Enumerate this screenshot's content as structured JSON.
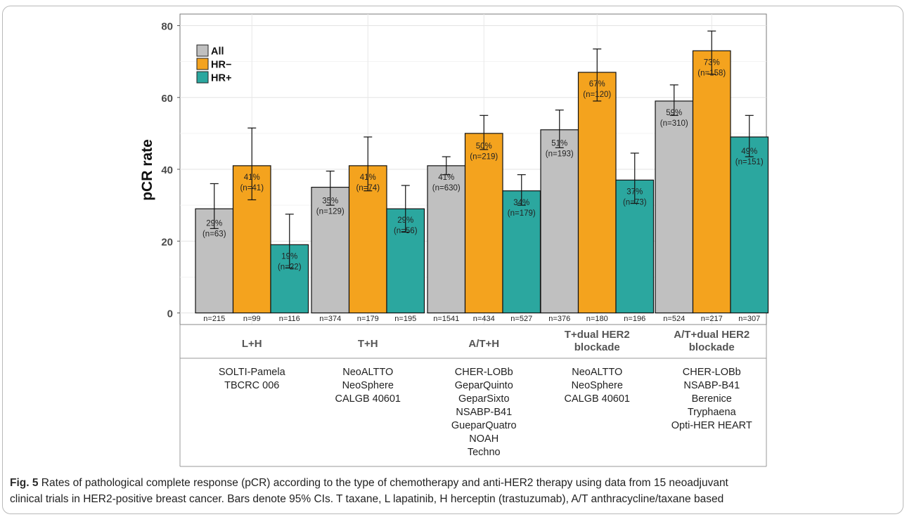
{
  "chart_data": {
    "type": "bar",
    "ylabel": "pCR rate",
    "ylim": [
      0,
      80
    ],
    "yticks": [
      0,
      20,
      40,
      60,
      80
    ],
    "grid": true,
    "legend_position": "top-left",
    "series": [
      {
        "name": "All",
        "color": "#c0c0c0",
        "values": [
          29,
          35,
          41,
          51,
          59
        ],
        "ci_low": [
          23.5,
          30,
          38.5,
          46,
          55
        ],
        "ci_high": [
          36,
          39.5,
          43.5,
          56.5,
          63.5
        ],
        "labels": [
          "29%",
          "35%",
          "41%",
          "51%",
          "59%"
        ],
        "n_pcr": [
          "(n=63)",
          "(n=129)",
          "(n=630)",
          "(n=193)",
          "(n=310)"
        ],
        "n_total": [
          "n=215",
          "n=374",
          "n=1541",
          "n=376",
          "n=524"
        ]
      },
      {
        "name": "HR−",
        "color": "#f4a31e",
        "values": [
          41,
          41,
          50,
          67,
          73
        ],
        "ci_low": [
          31.5,
          34,
          45.5,
          59,
          66.5
        ],
        "ci_high": [
          51.5,
          49,
          55,
          73.5,
          78.5
        ],
        "labels": [
          "41%",
          "41%",
          "50%",
          "67%",
          "73%"
        ],
        "n_pcr": [
          "(n=41)",
          "(n=74)",
          "(n=219)",
          "(n=120)",
          "(n=158)"
        ],
        "n_total": [
          "n=99",
          "n=179",
          "n=434",
          "n=180",
          "n=217"
        ]
      },
      {
        "name": "HR+",
        "color": "#2ba79f",
        "values": [
          19,
          29,
          34,
          37,
          49
        ],
        "ci_low": [
          12.5,
          22.5,
          30,
          30.5,
          43.5
        ],
        "ci_high": [
          27.5,
          35.5,
          38.5,
          44.5,
          55
        ],
        "labels": [
          "19%",
          "29%",
          "34%",
          "37%",
          "49%"
        ],
        "n_pcr": [
          "(n=22)",
          "(n=56)",
          "(n=179)",
          "(n=73)",
          "(n=151)"
        ],
        "n_total": [
          "n=116",
          "n=195",
          "n=527",
          "n=196",
          "n=307"
        ]
      }
    ],
    "groups": [
      {
        "name_lines": [
          "L+H"
        ],
        "trials": [
          "SOLTI-Pamela",
          "TBCRC 006"
        ]
      },
      {
        "name_lines": [
          "T+H"
        ],
        "trials": [
          "NeoALTTO",
          "NeoSphere",
          "CALGB 40601"
        ]
      },
      {
        "name_lines": [
          "A/T+H"
        ],
        "trials": [
          "CHER-LOBb",
          "GeparQuinto",
          "GeparSixto",
          "NSABP-B41",
          "GueparQuatro",
          "NOAH",
          "Techno"
        ]
      },
      {
        "name_lines": [
          "T+dual HER2",
          "blockade"
        ],
        "trials": [
          "NeoALTTO",
          "NeoSphere",
          "CALGB 40601"
        ]
      },
      {
        "name_lines": [
          "A/T+dual HER2",
          "blockade"
        ],
        "trials": [
          "CHER-LOBb",
          "NSABP-B41",
          "Berenice",
          "Tryphaena",
          "Opti-HER HEART"
        ]
      }
    ]
  },
  "caption": {
    "fig_label": "Fig. 5",
    "line1": "Rates of pathological complete response (pCR) according to the type of chemotherapy and anti-HER2 therapy using data from 15 neoadjuvant",
    "line2": "clinical trials in HER2-positive breast cancer. Bars denote 95% CIs. T taxane, L lapatinib, H herceptin (trastuzumab), A/T anthracycline/taxane based"
  }
}
